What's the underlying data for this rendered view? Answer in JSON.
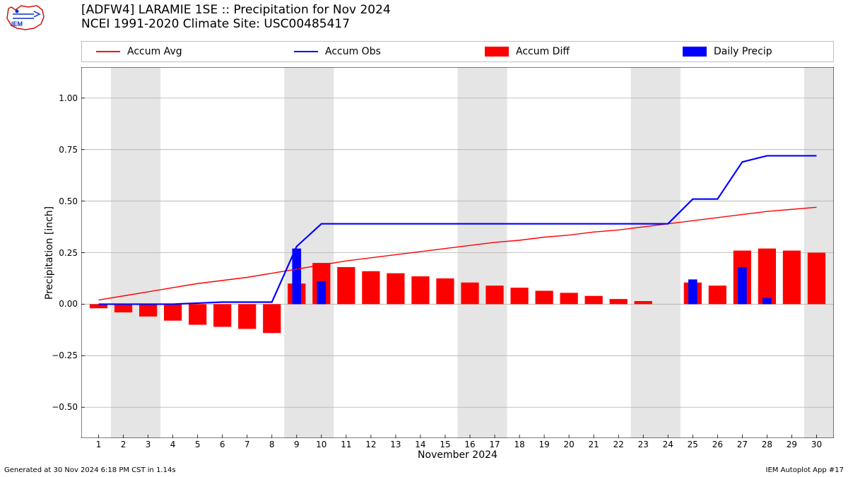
{
  "title": {
    "line1": "[ADFW4] LARAMIE 1SE :: Precipitation for Nov 2024",
    "line2": "NCEI 1991-2020 Climate Site: USC00485417"
  },
  "legend": {
    "items": [
      {
        "label": "Accum Avg",
        "type": "line",
        "color": "#ff0000"
      },
      {
        "label": "Accum Obs",
        "type": "line",
        "color": "#0000ff"
      },
      {
        "label": "Accum Diff",
        "type": "rect",
        "color": "#ff0000"
      },
      {
        "label": "Daily Precip",
        "type": "rect",
        "color": "#0000ff"
      }
    ]
  },
  "axes": {
    "xlabel": "November 2024",
    "ylabel": "Precipitation [inch]",
    "ylim": [
      -0.65,
      1.15
    ],
    "xlim": [
      0.3,
      30.7
    ],
    "yticks": [
      -0.5,
      -0.25,
      0.0,
      0.25,
      0.5,
      0.75,
      1.0
    ],
    "ytick_labels": [
      "−0.50",
      "−0.25",
      "0.00",
      "0.25",
      "0.50",
      "0.75",
      "1.00"
    ],
    "xticks": [
      1,
      2,
      3,
      4,
      5,
      6,
      7,
      8,
      9,
      10,
      11,
      12,
      13,
      14,
      15,
      16,
      17,
      18,
      19,
      20,
      21,
      22,
      23,
      24,
      25,
      26,
      27,
      28,
      29,
      30
    ],
    "grid_color": "#b0b0b0",
    "bg_color": "#ffffff",
    "shade_color": "#e5e5e5"
  },
  "shaded_ranges": [
    [
      1.5,
      3.5
    ],
    [
      8.5,
      10.5
    ],
    [
      15.5,
      17.5
    ],
    [
      22.5,
      24.5
    ],
    [
      29.5,
      30.7
    ]
  ],
  "series": {
    "accum_avg": {
      "color": "#ff0000",
      "width": 1.4,
      "x": [
        1,
        2,
        3,
        4,
        5,
        6,
        7,
        8,
        9,
        10,
        11,
        12,
        13,
        14,
        15,
        16,
        17,
        18,
        19,
        20,
        21,
        22,
        23,
        24,
        25,
        26,
        27,
        28,
        29,
        30
      ],
      "y": [
        0.02,
        0.04,
        0.06,
        0.08,
        0.1,
        0.115,
        0.13,
        0.15,
        0.17,
        0.19,
        0.21,
        0.225,
        0.24,
        0.255,
        0.27,
        0.285,
        0.3,
        0.31,
        0.325,
        0.335,
        0.35,
        0.36,
        0.375,
        0.39,
        0.405,
        0.42,
        0.435,
        0.45,
        0.46,
        0.47
      ]
    },
    "accum_obs": {
      "color": "#0000ff",
      "width": 2.2,
      "x": [
        1,
        2,
        3,
        4,
        5,
        6,
        7,
        8,
        9,
        10,
        11,
        12,
        13,
        14,
        15,
        16,
        17,
        18,
        19,
        20,
        21,
        22,
        23,
        24,
        25,
        26,
        27,
        28,
        29,
        30
      ],
      "y": [
        0.0,
        0.0,
        0.0,
        0.0,
        0.005,
        0.01,
        0.01,
        0.01,
        0.28,
        0.39,
        0.39,
        0.39,
        0.39,
        0.39,
        0.39,
        0.39,
        0.39,
        0.39,
        0.39,
        0.39,
        0.39,
        0.39,
        0.39,
        0.39,
        0.51,
        0.51,
        0.69,
        0.72,
        0.72,
        0.72
      ]
    },
    "accum_diff": {
      "color": "#ff0000",
      "bar_width": 0.72,
      "x": [
        1,
        2,
        3,
        4,
        5,
        6,
        7,
        8,
        9,
        10,
        11,
        12,
        13,
        14,
        15,
        16,
        17,
        18,
        19,
        20,
        21,
        22,
        23,
        24,
        25,
        26,
        27,
        28,
        29,
        30
      ],
      "y": [
        -0.02,
        -0.04,
        -0.06,
        -0.08,
        -0.1,
        -0.11,
        -0.12,
        -0.14,
        0.1,
        0.2,
        0.18,
        0.16,
        0.15,
        0.135,
        0.125,
        0.105,
        0.09,
        0.08,
        0.065,
        0.055,
        0.04,
        0.025,
        0.015,
        0.0,
        0.105,
        0.09,
        0.26,
        0.27,
        0.26,
        0.25
      ]
    },
    "daily_precip": {
      "color": "#0000ff",
      "bar_width": 0.36,
      "x": [
        9,
        10,
        25,
        27,
        28
      ],
      "y": [
        0.27,
        0.11,
        0.12,
        0.18,
        0.03
      ]
    }
  },
  "footer": {
    "left": "Generated at 30 Nov 2024 6:18 PM CST in 1.14s",
    "right": "IEM Autoplot App #17"
  }
}
